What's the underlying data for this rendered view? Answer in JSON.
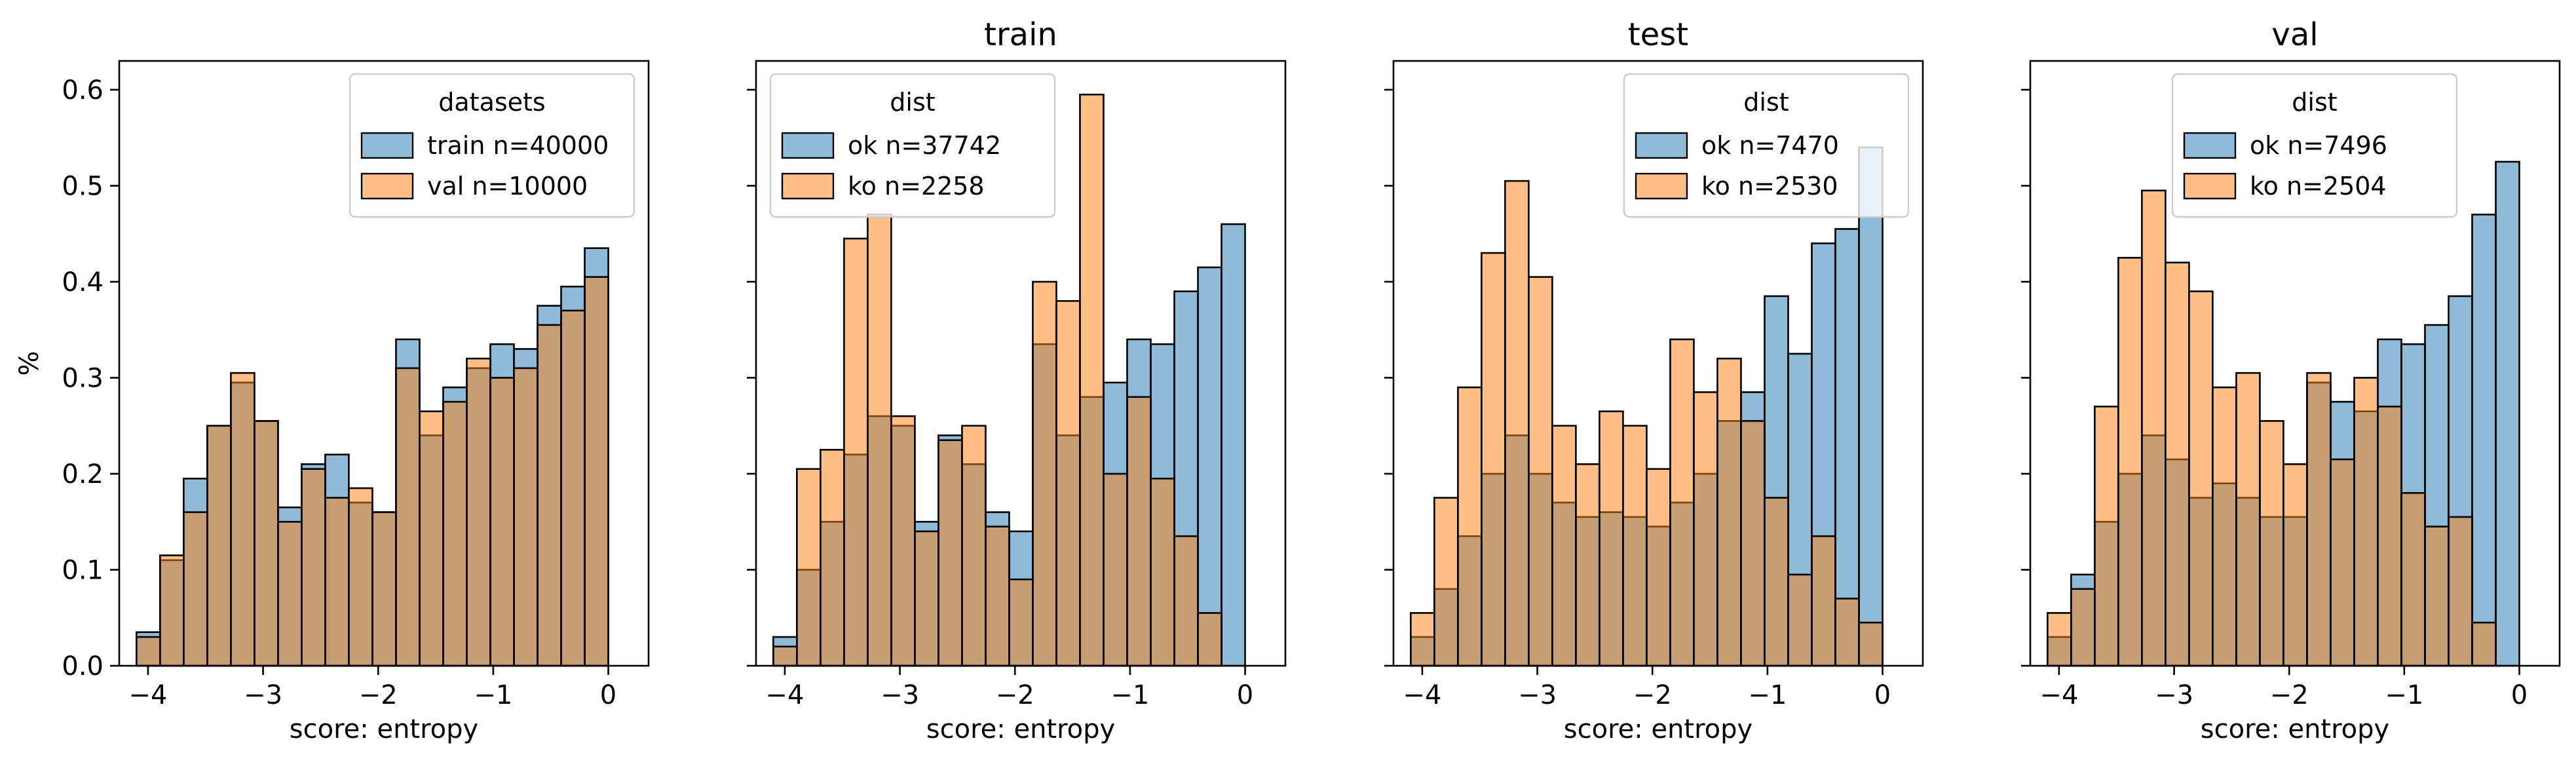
{
  "chart_data": [
    {
      "type": "bar",
      "title": "",
      "xlabel": "score: entropy",
      "ylabel": "%",
      "xlim": [
        -4.25,
        0.35
      ],
      "ylim": [
        0,
        0.63
      ],
      "x_ticks": [
        -4,
        -3,
        -2,
        -1,
        0
      ],
      "y_ticks": [
        0.0,
        0.1,
        0.2,
        0.3,
        0.4,
        0.5,
        0.6
      ],
      "legend": {
        "title": "datasets",
        "placement": "upper-right"
      },
      "bins_start": -4.1,
      "bin_width": 0.205,
      "series": [
        {
          "name": "train n=40000",
          "color": "#1f77b4",
          "values": [
            0.035,
            0.11,
            0.195,
            0.25,
            0.295,
            0.255,
            0.165,
            0.21,
            0.22,
            0.17,
            0.16,
            0.34,
            0.24,
            0.29,
            0.31,
            0.335,
            0.33,
            0.375,
            0.395,
            0.435
          ]
        },
        {
          "name": "val n=10000",
          "color": "#ff7f0e",
          "values": [
            0.03,
            0.115,
            0.16,
            0.25,
            0.305,
            0.255,
            0.15,
            0.205,
            0.175,
            0.185,
            0.16,
            0.31,
            0.265,
            0.275,
            0.32,
            0.3,
            0.31,
            0.355,
            0.37,
            0.405
          ]
        }
      ]
    },
    {
      "type": "bar",
      "title": "train",
      "xlabel": "score: entropy",
      "ylabel": "",
      "xlim": [
        -4.25,
        0.35
      ],
      "ylim": [
        0,
        0.63
      ],
      "x_ticks": [
        -4,
        -3,
        -2,
        -1,
        0
      ],
      "y_ticks": [
        0.0,
        0.1,
        0.2,
        0.3,
        0.4,
        0.5,
        0.6
      ],
      "legend": {
        "title": "dist",
        "placement": "upper-left"
      },
      "bins_start": -4.1,
      "bin_width": 0.205,
      "series": [
        {
          "name": "ok n=37742",
          "color": "#1f77b4",
          "values": [
            0.03,
            0.1,
            0.15,
            0.22,
            0.26,
            0.25,
            0.15,
            0.24,
            0.21,
            0.16,
            0.14,
            0.335,
            0.24,
            0.28,
            0.295,
            0.34,
            0.335,
            0.39,
            0.415,
            0.46
          ]
        },
        {
          "name": "ko n=2258",
          "color": "#ff7f0e",
          "values": [
            0.02,
            0.205,
            0.225,
            0.445,
            0.47,
            0.26,
            0.14,
            0.235,
            0.25,
            0.145,
            0.09,
            0.4,
            0.38,
            0.595,
            0.2,
            0.28,
            0.195,
            0.135,
            0.055,
            0.0
          ]
        }
      ]
    },
    {
      "type": "bar",
      "title": "test",
      "xlabel": "score: entropy",
      "ylabel": "",
      "xlim": [
        -4.25,
        0.35
      ],
      "ylim": [
        0,
        0.63
      ],
      "x_ticks": [
        -4,
        -3,
        -2,
        -1,
        0
      ],
      "y_ticks": [
        0.0,
        0.1,
        0.2,
        0.3,
        0.4,
        0.5,
        0.6
      ],
      "legend": {
        "title": "dist",
        "placement": "upper-right"
      },
      "bins_start": -4.1,
      "bin_width": 0.205,
      "series": [
        {
          "name": "ok n=7470",
          "color": "#1f77b4",
          "values": [
            0.03,
            0.08,
            0.135,
            0.2,
            0.24,
            0.2,
            0.17,
            0.155,
            0.16,
            0.155,
            0.145,
            0.17,
            0.2,
            0.255,
            0.285,
            0.385,
            0.325,
            0.44,
            0.455,
            0.54
          ]
        },
        {
          "name": "ko n=2530",
          "color": "#ff7f0e",
          "values": [
            0.055,
            0.175,
            0.29,
            0.43,
            0.505,
            0.405,
            0.25,
            0.21,
            0.265,
            0.25,
            0.205,
            0.34,
            0.285,
            0.32,
            0.255,
            0.175,
            0.095,
            0.135,
            0.07,
            0.045
          ]
        }
      ]
    },
    {
      "type": "bar",
      "title": "val",
      "xlabel": "score: entropy",
      "ylabel": "",
      "xlim": [
        -4.25,
        0.35
      ],
      "ylim": [
        0,
        0.63
      ],
      "x_ticks": [
        -4,
        -3,
        -2,
        -1,
        0
      ],
      "y_ticks": [
        0.0,
        0.1,
        0.2,
        0.3,
        0.4,
        0.5,
        0.6
      ],
      "legend": {
        "title": "dist",
        "placement": "upper-center"
      },
      "bins_start": -4.1,
      "bin_width": 0.205,
      "series": [
        {
          "name": "ok n=7496",
          "color": "#1f77b4",
          "values": [
            0.03,
            0.095,
            0.15,
            0.2,
            0.24,
            0.215,
            0.175,
            0.19,
            0.175,
            0.155,
            0.155,
            0.295,
            0.275,
            0.265,
            0.34,
            0.335,
            0.355,
            0.385,
            0.47,
            0.525
          ]
        },
        {
          "name": "ko n=2504",
          "color": "#ff7f0e",
          "values": [
            0.055,
            0.08,
            0.27,
            0.425,
            0.495,
            0.42,
            0.39,
            0.29,
            0.305,
            0.255,
            0.21,
            0.305,
            0.215,
            0.3,
            0.27,
            0.18,
            0.145,
            0.155,
            0.045,
            0.0
          ]
        }
      ]
    }
  ]
}
